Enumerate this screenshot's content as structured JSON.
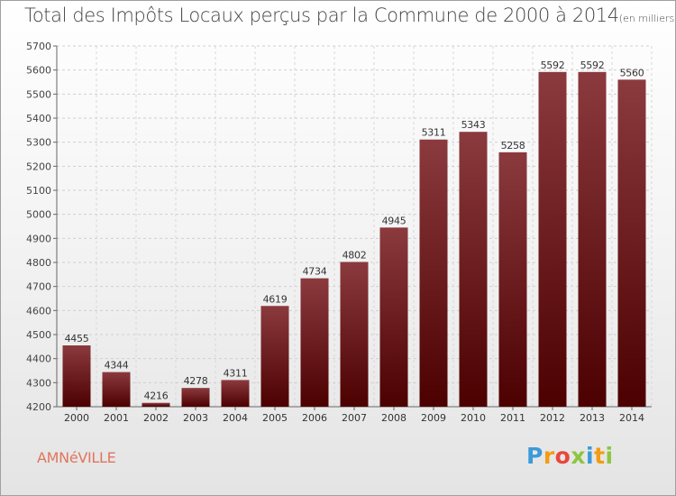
{
  "brand": {
    "letters": [
      {
        "char": "P",
        "color": "#3b9ad9"
      },
      {
        "char": "r",
        "color": "#f39c12"
      },
      {
        "char": "o",
        "color": "#e8473b"
      },
      {
        "char": "x",
        "color": "#8dc63f"
      },
      {
        "char": "i",
        "color": "#3b9ad9"
      },
      {
        "char": "t",
        "color": "#f39c12"
      },
      {
        "char": "i",
        "color": "#8dc63f"
      }
    ]
  },
  "commune": "AMNéVILLE",
  "chart_data": {
    "type": "bar",
    "title": "Total des Impôts Locaux perçus par la Commune de 2000 à 2014",
    "unit_label": "(en milliers d'€)",
    "categories": [
      "2000",
      "2001",
      "2002",
      "2003",
      "2004",
      "2005",
      "2006",
      "2007",
      "2008",
      "2009",
      "2010",
      "2011",
      "2012",
      "2013",
      "2014"
    ],
    "values": [
      4455,
      4344,
      4216,
      4278,
      4311,
      4619,
      4734,
      4802,
      4945,
      5311,
      5343,
      5258,
      5592,
      5592,
      5560
    ],
    "ylim": [
      4200,
      5700
    ],
    "yticks": [
      4200,
      4300,
      4400,
      4500,
      4600,
      4700,
      4800,
      4900,
      5000,
      5100,
      5200,
      5300,
      5400,
      5500,
      5600,
      5700
    ],
    "grid": true,
    "bar_color_top": "#8b3a3e",
    "bar_color_bottom": "#4c0000"
  }
}
